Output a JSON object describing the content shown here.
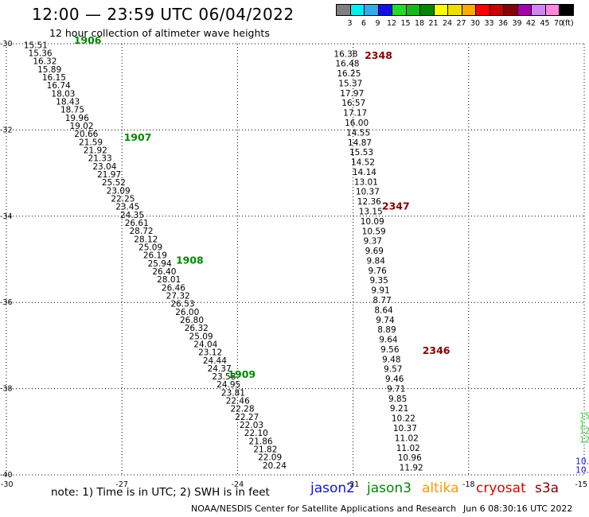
{
  "header": {
    "title": "12:00 — 23:59 UTC 06/04/2022",
    "subtitle": "12 hour collection of altimeter wave heights"
  },
  "colorbar": {
    "unit": "(ft)",
    "swatches": [
      {
        "color": "#7f7f7f",
        "label": "3"
      },
      {
        "color": "#00eeee",
        "label": "6"
      },
      {
        "color": "#33aaee",
        "label": "9"
      },
      {
        "color": "#1010ee",
        "label": "12"
      },
      {
        "color": "#22dd22",
        "label": "15"
      },
      {
        "color": "#11bb11",
        "label": "18"
      },
      {
        "color": "#008800",
        "label": "21"
      },
      {
        "color": "#ffff00",
        "label": "24"
      },
      {
        "color": "#eedd00",
        "label": "27"
      },
      {
        "color": "#ffaa00",
        "label": "30"
      },
      {
        "color": "#ff0000",
        "label": "33"
      },
      {
        "color": "#cc0000",
        "label": "36"
      },
      {
        "color": "#880000",
        "label": "39"
      },
      {
        "color": "#aa00aa",
        "label": "42"
      },
      {
        "color": "#cc88ee",
        "label": "45"
      },
      {
        "color": "#ff88dd",
        "label": "70"
      },
      {
        "color": "#000000",
        "label": ""
      }
    ]
  },
  "chart_data": {
    "type": "scatter",
    "xlim": [
      -30,
      -15
    ],
    "ylim": [
      -40,
      -30
    ],
    "x_ticks": [
      "-30",
      "-27",
      "-24",
      "-21",
      "-18",
      "-15"
    ],
    "y_ticks": [
      "-30",
      "-32",
      "-34",
      "-36",
      "-38",
      "-40"
    ],
    "left_track": {
      "start": [
        -29.55,
        -30.1
      ],
      "end": [
        -23.35,
        -39.85
      ],
      "values": [
        "15.51",
        "15.36",
        "16.32",
        "15.89",
        "16.15",
        "16.74",
        "18.03",
        "18.43",
        "18.75",
        "19.96",
        "19.02",
        "20.66",
        "21.59",
        "21.92",
        "21.33",
        "23.04",
        "21.97",
        "25.52",
        "23.09",
        "22.25",
        "23.45",
        "24.35",
        "26.61",
        "28.72",
        "28.12",
        "25.09",
        "26.19",
        "25.94",
        "26.40",
        "28.01",
        "26.46",
        "27.32",
        "26.53",
        "26.00",
        "26.80",
        "26.32",
        "25.09",
        "24.04",
        "23.12",
        "24.44",
        "24.37",
        "23.58",
        "24.95",
        "23.81",
        "22.46",
        "22.28",
        "22.27",
        "22.03",
        "22.10",
        "21.86",
        "21.82",
        "22.09",
        "20.24"
      ],
      "time_labels": [
        {
          "text": "1906",
          "lon": -28.25,
          "lat": -30.0
        },
        {
          "text": "1907",
          "lon": -26.95,
          "lat": -32.25
        },
        {
          "text": "1908",
          "lon": -25.6,
          "lat": -35.1
        },
        {
          "text": "1909",
          "lon": -24.25,
          "lat": -37.75
        }
      ]
    },
    "right_track": {
      "start": [
        -21.5,
        -30.3
      ],
      "end": [
        -19.8,
        -39.9
      ],
      "values": [
        "16.38",
        "16.48",
        "16.25",
        "15.37",
        "17.97",
        "16.57",
        "17.17",
        "16.00",
        "14.55",
        "14.87",
        "15.53",
        "14.52",
        "14.14",
        "13.01",
        "10.37",
        "12.36",
        "13.15",
        "10.09",
        "10.59",
        "9.37",
        "9.69",
        "9.84",
        "9.76",
        "9.35",
        "9.91",
        "8.77",
        "8.64",
        "9.74",
        "8.89",
        "9.64",
        "9.56",
        "9.48",
        "9.57",
        "9.46",
        "9.71",
        "9.85",
        "9.21",
        "10.22",
        "10.37",
        "11.02",
        "11.02",
        "10.96",
        "11.92"
      ],
      "time_labels": [
        {
          "text": "2348",
          "lon": -20.7,
          "lat": -30.35
        },
        {
          "text": "2347",
          "lon": -20.25,
          "lat": -33.85
        },
        {
          "text": "2346",
          "lon": -19.2,
          "lat": -37.2
        }
      ]
    },
    "edge_values": [
      {
        "text": "15",
        "lon": -15.0,
        "lat": -38.7,
        "color": "#22dd22"
      },
      {
        "text": "1.",
        "lon": -15.0,
        "lat": -38.88,
        "color": "#22dd22"
      },
      {
        "text": "12",
        "lon": -15.0,
        "lat": -39.05,
        "color": "#33cc33"
      },
      {
        "text": "12",
        "lon": -15.0,
        "lat": -39.25,
        "color": "#33cc33"
      },
      {
        "text": "10.",
        "lon": -15.1,
        "lat": -39.75,
        "color": "#1010ee"
      },
      {
        "text": "10.",
        "lon": -15.1,
        "lat": -39.95,
        "color": "#1010ee"
      }
    ]
  },
  "footer": {
    "note": "note:  1) Time is in UTC;  2) SWH is in feet",
    "satellites": [
      {
        "name": "jason2",
        "color": "#1010ee"
      },
      {
        "name": "jason3",
        "color": "#008800"
      },
      {
        "name": "altika",
        "color": "#ff9900"
      },
      {
        "name": "cryosat",
        "color": "#dd0000"
      },
      {
        "name": "s3a",
        "color": "#880000"
      }
    ],
    "source": "NOAA/NESDIS Center for Satellite Applications and Research",
    "timestamp": "Jun  6 08:30:16 UTC 2022"
  }
}
